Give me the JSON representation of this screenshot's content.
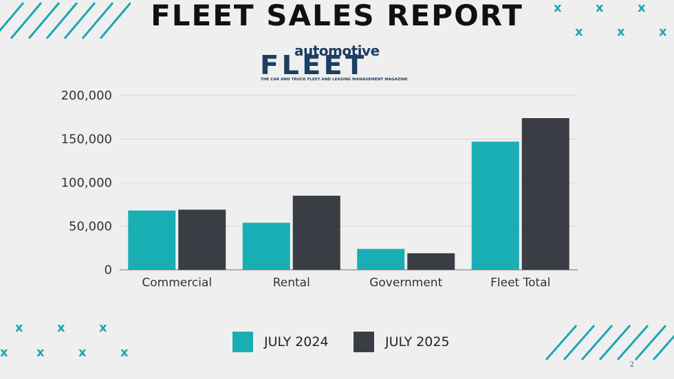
{
  "slide": {
    "title": "FLEET SALES REPORT",
    "page_number": "2",
    "logo": {
      "top_word": "automotive",
      "main_word": "FLEET",
      "tagline": "THE CAR AND TRUCK FLEET AND LEASING MANAGEMENT MAGAZINE"
    },
    "decor": {
      "x_glyph": "x",
      "stripe_icon": "diagonal-stripes-icon",
      "x_icon": "x-mark-icon"
    }
  },
  "colors": {
    "series_2024": "#19aeb3",
    "series_2025": "#3b3d44",
    "accent": "#1aa7b0",
    "background": "#efefef"
  },
  "chart_data": {
    "type": "bar",
    "categories": [
      "Commercial",
      "Rental",
      "Government",
      "Fleet Total"
    ],
    "series": [
      {
        "name": "JULY 2024",
        "values": [
          68000,
          54000,
          24000,
          147000
        ]
      },
      {
        "name": "JULY 2025",
        "values": [
          69000,
          85000,
          19000,
          174000
        ]
      }
    ],
    "yticks": [
      "0",
      "50,000",
      "100,000",
      "150,000",
      "200,000"
    ],
    "ytick_values": [
      0,
      50000,
      100000,
      150000,
      200000
    ],
    "ylim": [
      0,
      200000
    ],
    "grid": true,
    "legend_position": "bottom",
    "title": "",
    "xlabel": "",
    "ylabel": ""
  }
}
